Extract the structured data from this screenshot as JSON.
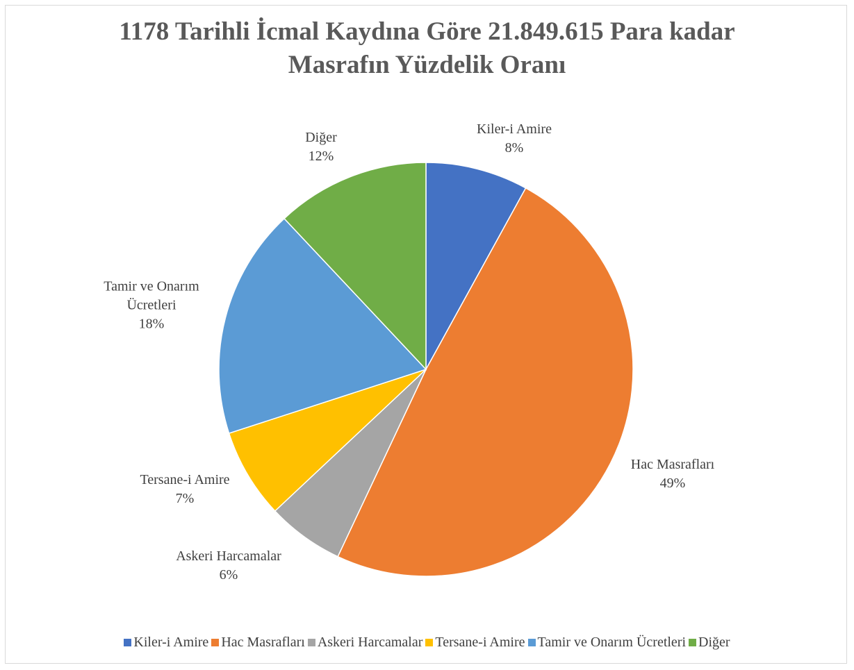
{
  "chart_data": {
    "type": "pie",
    "title": "1178 Tarihli İcmal Kaydına Göre 21.849.615 Para kadar Masrafın Yüzdelik Oranı",
    "categories": [
      "Kiler-i Amire",
      "Hac Masrafları",
      "Askeri Harcamalar",
      "Tersane-i Amire",
      "Tamir ve Onarım Ücretleri",
      "Diğer"
    ],
    "values": [
      8,
      49,
      6,
      7,
      18,
      12
    ],
    "value_labels": [
      "8%",
      "49%",
      "6%",
      "7%",
      "18%",
      "12%"
    ],
    "colors": [
      "#4472c4",
      "#ed7d31",
      "#a5a5a5",
      "#ffc000",
      "#5b9bd5",
      "#70ad47"
    ],
    "legend": "bottom"
  }
}
